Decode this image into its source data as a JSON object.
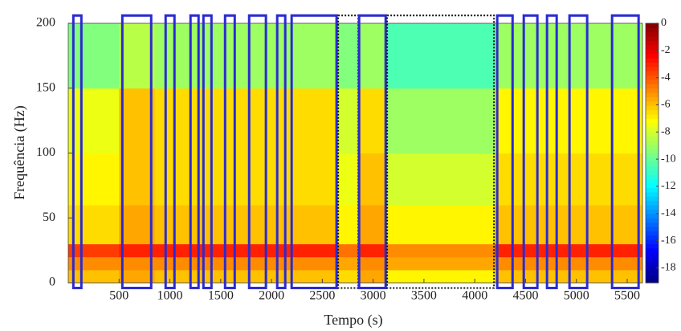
{
  "chart_data": {
    "type": "heatmap",
    "xlabel": "Tempo (s)",
    "ylabel": "Frequência (Hz)",
    "xlim": [
      0,
      5650
    ],
    "ylim": [
      0,
      200
    ],
    "xticks": [
      500,
      1000,
      1500,
      2000,
      2500,
      3000,
      3500,
      4000,
      4500,
      5000,
      5500
    ],
    "yticks": [
      0,
      50,
      100,
      150,
      200
    ],
    "x_bins": [
      0,
      500,
      850,
      2650,
      2860,
      3130,
      4200,
      4600,
      5650
    ],
    "y_bins": [
      0,
      10,
      20,
      30,
      60,
      100,
      150,
      200
    ],
    "z": [
      [
        -6,
        -5.5,
        -6,
        -6.5,
        -5.5,
        -7,
        -6,
        -6
      ],
      [
        -5,
        -5,
        -5,
        -5.5,
        -5,
        -5.5,
        -5,
        -5
      ],
      [
        -3.5,
        -3,
        -3,
        -4.5,
        -3,
        -5,
        -3,
        -3
      ],
      [
        -6.5,
        -5.5,
        -6,
        -7,
        -5.5,
        -7,
        -6,
        -6
      ],
      [
        -7,
        -6,
        -6.5,
        -7.5,
        -6,
        -8,
        -6.5,
        -6.5
      ],
      [
        -7.5,
        -6,
        -6.5,
        -8,
        -6.5,
        -9,
        -7,
        -7
      ],
      [
        -9.5,
        -8.5,
        -9,
        -9.5,
        -9,
        -10.5,
        -9,
        -9
      ]
    ],
    "colormap": "jet",
    "clim": [
      -19.1,
      0
    ],
    "cticks": [
      0,
      -2,
      -4,
      -6,
      -8,
      -10,
      -12,
      -14,
      -16,
      -18
    ],
    "box_ylim": [
      -4,
      206
    ],
    "boxes": [
      {
        "x": [
          50,
          129
        ],
        "style": "solid",
        "color": "#2a2ad2"
      },
      {
        "x": [
          532,
          816
        ],
        "style": "solid",
        "color": "#2a2ad2"
      },
      {
        "x": [
          958,
          1045
        ],
        "style": "solid",
        "color": "#2a2ad2"
      },
      {
        "x": [
          1203,
          1282
        ],
        "style": "solid",
        "color": "#2a2ad2"
      },
      {
        "x": [
          1330,
          1409
        ],
        "style": "solid",
        "color": "#2a2ad2"
      },
      {
        "x": [
          1543,
          1638
        ],
        "style": "solid",
        "color": "#2a2ad2"
      },
      {
        "x": [
          1780,
          1945
        ],
        "style": "solid",
        "color": "#2a2ad2"
      },
      {
        "x": [
          2056,
          2135
        ],
        "style": "solid",
        "color": "#2a2ad2"
      },
      {
        "x": [
          2198,
          2640
        ],
        "style": "solid",
        "color": "#2a2ad2"
      },
      {
        "x": [
          2656,
          2854
        ],
        "style": "dotted",
        "color": "#111111"
      },
      {
        "x": [
          2862,
          3123
        ],
        "style": "solid",
        "color": "#2a2ad2"
      },
      {
        "x": [
          3138,
          4189
        ],
        "style": "dotted",
        "color": "#111111"
      },
      {
        "x": [
          4221,
          4372
        ],
        "style": "solid",
        "color": "#2a2ad2"
      },
      {
        "x": [
          4482,
          4616
        ],
        "style": "solid",
        "color": "#2a2ad2"
      },
      {
        "x": [
          4711,
          4806
        ],
        "style": "solid",
        "color": "#2a2ad2"
      },
      {
        "x": [
          4932,
          5106
        ],
        "style": "solid",
        "color": "#2a2ad2"
      },
      {
        "x": [
          5351,
          5612
        ],
        "style": "solid",
        "color": "#2a2ad2"
      }
    ]
  }
}
